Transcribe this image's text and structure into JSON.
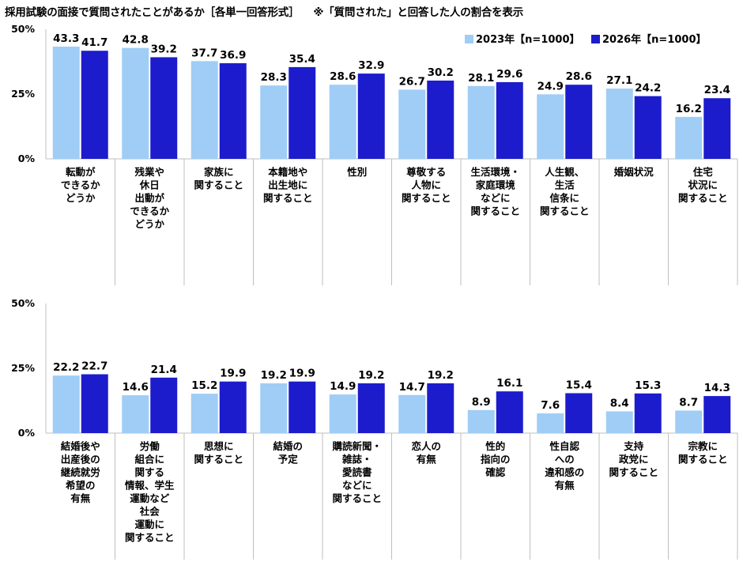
{
  "title": "採用試験の面接で質問されたことがあるか［各単一回答形式］",
  "note": "※「質問された」と回答した人の割合を表示",
  "colors": {
    "series_2023": "#9fcdf6",
    "series_2026": "#1c1ccc",
    "grid": "#bfbfbf"
  },
  "chart_data": [
    {
      "type": "bar",
      "title": "",
      "ylim": [
        0,
        50
      ],
      "yticks": [
        "0%",
        "25%",
        "50%"
      ],
      "legend_position": "top-right",
      "categories": [
        "転動が\nできるか\nどうか",
        "残業や\n休日\n出動が\nできるか\nどうか",
        "家族に\n関すること",
        "本籍地や\n出生地に\n関すること",
        "性別",
        "尊敬する\n人物に\n関すること",
        "生活環境・\n家庭環境\nなどに\n関すること",
        "人生観、\n生活\n信条に\n関すること",
        "婚姻状況",
        "住宅\n状況に\n関すること"
      ],
      "series": [
        {
          "name": "2023年【n=1000】",
          "values": [
            43.3,
            42.8,
            37.7,
            28.3,
            28.6,
            26.7,
            28.1,
            24.9,
            27.1,
            16.2
          ]
        },
        {
          "name": "2026年【n=1000】",
          "values": [
            41.7,
            39.2,
            36.9,
            35.4,
            32.9,
            30.2,
            29.6,
            28.6,
            24.2,
            23.4
          ]
        }
      ]
    },
    {
      "type": "bar",
      "title": "",
      "ylim": [
        0,
        50
      ],
      "yticks": [
        "0%",
        "25%",
        "50%"
      ],
      "categories": [
        "結婚後や\n出産後の\n継続就労\n希望の\n有無",
        "労働\n組合に\n関する\n情報、学生\n運動など\n社会\n運動に\n関すること",
        "思想に\n関すること",
        "結婚の\n予定",
        "購読新聞・\n雑誌・\n愛読書\nなどに\n関すること",
        "恋人の\n有無",
        "性的\n指向の\n確認",
        "性自認\nへの\n違和感の\n有無",
        "支持\n政党に\n関すること",
        "宗教に\n関すること"
      ],
      "series": [
        {
          "name": "2023年【n=1000】",
          "values": [
            22.2,
            14.6,
            15.2,
            19.2,
            14.9,
            14.7,
            8.9,
            7.6,
            8.4,
            8.7
          ]
        },
        {
          "name": "2026年【n=1000】",
          "values": [
            22.7,
            21.4,
            19.9,
            19.9,
            19.2,
            19.2,
            16.1,
            15.4,
            15.3,
            14.3
          ]
        }
      ]
    }
  ]
}
